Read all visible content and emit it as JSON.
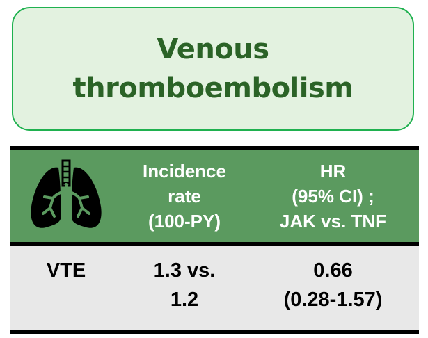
{
  "title": {
    "lines": [
      "Venous",
      "thromboembolism"
    ]
  },
  "colors": {
    "title_text": "#2b6327",
    "title_border": "#1fb14f",
    "title_fill": "#e3f2e0",
    "header_fill": "#5b9a5f",
    "body_fill": "#e8e8e8"
  },
  "table": {
    "header": {
      "icon": "lungs-icon",
      "incidence": [
        "Incidence",
        "rate",
        "(100-PY)"
      ],
      "hr": [
        "HR",
        "(95% CI) ;",
        "JAK vs. TNF"
      ]
    },
    "rows": [
      {
        "label": "VTE",
        "incidence": [
          "1.3 vs.",
          "1.2"
        ],
        "hr": [
          "0.66",
          "(0.28-1.57)"
        ]
      }
    ]
  }
}
